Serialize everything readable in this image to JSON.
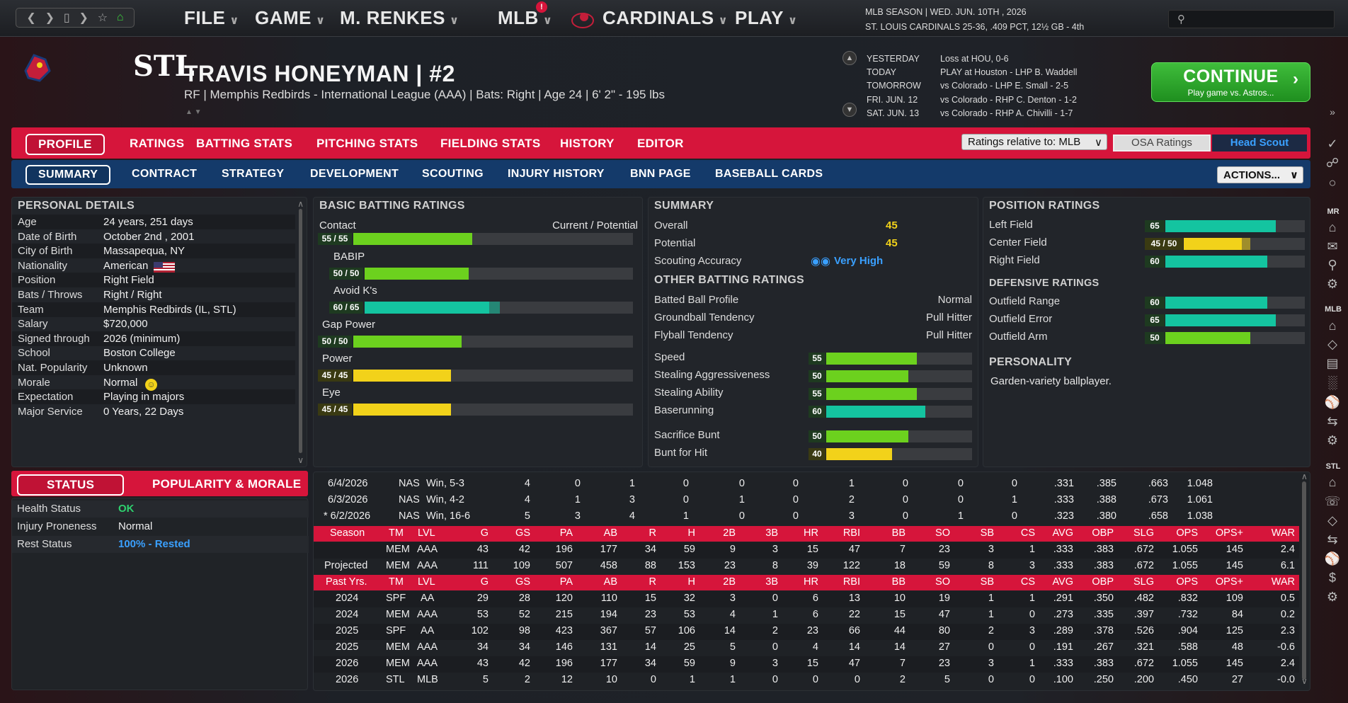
{
  "topbar": {
    "menus": [
      "FILE",
      "GAME",
      "M. RENKES",
      "MLB",
      "CARDINALS",
      "PLAY"
    ],
    "alert_badge": "!",
    "season_line1": "MLB SEASON  |  WED. JUN. 10TH , 2026",
    "season_line2": "ST. LOUIS CARDINALS  25-36, .409 PCT, 12½ GB - 4th",
    "search_placeholder": ""
  },
  "player": {
    "name": "TRAVIS HONEYMAN  |  #2",
    "subtitle": "RF | Memphis Redbirds - International League (AAA)  |  Bats: Right  |  Age 24  |  6' 2\" - 195 lbs",
    "team_logo": "STL"
  },
  "schedule": {
    "labels": [
      "YESTERDAY",
      "TODAY",
      "TOMORROW",
      "FRI. JUN. 12",
      "SAT. JUN. 13"
    ],
    "values": [
      "Loss at HOU, 0-6",
      "PLAY at Houston - LHP B. Waddell",
      "vs Colorado - LHP E. Small - 2-5",
      "vs Colorado - RHP C. Denton - 1-2",
      "vs Colorado - RHP A. Chivilli - 1-7"
    ]
  },
  "continue": {
    "label": "CONTINUE",
    "sub": "Play game vs. Astros..."
  },
  "tabs1": [
    "PROFILE",
    "RATINGS",
    "BATTING STATS",
    "PITCHING STATS",
    "FIELDING STATS",
    "HISTORY",
    "EDITOR"
  ],
  "tabs2": [
    "SUMMARY",
    "CONTRACT",
    "STRATEGY",
    "DEVELOPMENT",
    "SCOUTING",
    "INJURY HISTORY",
    "BNN PAGE",
    "BASEBALL CARDS"
  ],
  "ratings_select": "Ratings relative to: MLB",
  "osa": "OSA Ratings",
  "head_scout": "Head Scout",
  "actions": "ACTIONS...",
  "personal": {
    "title": "PERSONAL DETAILS",
    "rows": [
      [
        "Age",
        "24 years, 251 days"
      ],
      [
        "Date of Birth",
        "October 2nd , 2001"
      ],
      [
        "City of Birth",
        "Massapequa, NY"
      ],
      [
        "Nationality",
        "American"
      ],
      [
        "Position",
        "Right Field"
      ],
      [
        "Bats / Throws",
        "Right / Right"
      ],
      [
        "Team",
        "Memphis Redbirds (IL, STL)"
      ],
      [
        "Salary",
        "$720,000"
      ],
      [
        "Signed through",
        "2026 (minimum)"
      ],
      [
        "School",
        "Boston College"
      ],
      [
        "Nat. Popularity",
        "Unknown"
      ],
      [
        "Morale",
        "Normal"
      ],
      [
        "Expectation",
        "Playing in majors"
      ],
      [
        "Major Service",
        "0 Years, 22 Days"
      ]
    ]
  },
  "batting": {
    "title": "BASIC BATTING RATINGS",
    "header_right": "Current / Potential",
    "items": [
      {
        "label": "Contact",
        "text": "55 / 55",
        "cur": 55,
        "pot": 55,
        "color": "g",
        "indent": false
      },
      {
        "label": "BABIP",
        "text": "50 / 50",
        "cur": 50,
        "pot": 50,
        "color": "g",
        "indent": true
      },
      {
        "label": "Avoid K's",
        "text": "60 / 65",
        "cur": 60,
        "pot": 65,
        "color": "c",
        "indent": true
      },
      {
        "label": "Gap Power",
        "text": "50 / 50",
        "cur": 50,
        "pot": 50,
        "color": "g",
        "indent": false
      },
      {
        "label": "Power",
        "text": "45 / 45",
        "cur": 45,
        "pot": 45,
        "color": "y",
        "indent": false
      },
      {
        "label": "Eye",
        "text": "45 / 45",
        "cur": 45,
        "pot": 45,
        "color": "y",
        "indent": false
      }
    ]
  },
  "summary": {
    "title": "SUMMARY",
    "overall_label": "Overall",
    "overall": "45",
    "potential_label": "Potential",
    "potential": "45",
    "scout_label": "Scouting Accuracy",
    "scout": "Very High",
    "other_title": "OTHER BATTING RATINGS",
    "profile": [
      [
        "Batted Ball Profile",
        "Normal"
      ],
      [
        "Groundball Tendency",
        "Pull Hitter"
      ],
      [
        "Flyball Tendency",
        "Pull Hitter"
      ]
    ],
    "bars": [
      {
        "label": "Speed",
        "v": 55,
        "color": "g"
      },
      {
        "label": "Stealing Aggressiveness",
        "v": 50,
        "color": "g"
      },
      {
        "label": "Stealing Ability",
        "v": 55,
        "color": "g"
      },
      {
        "label": "Baserunning",
        "v": 60,
        "color": "c"
      },
      {
        "label": "Sacrifice Bunt",
        "v": 50,
        "color": "g"
      },
      {
        "label": "Bunt for Hit",
        "v": 40,
        "color": "y"
      }
    ]
  },
  "position": {
    "title": "POSITION RATINGS",
    "items": [
      {
        "label": "Left Field",
        "text": "65",
        "cur": 65,
        "pot": 65,
        "color": "c"
      },
      {
        "label": "Center Field",
        "text": "45 / 50",
        "cur": 45,
        "pot": 50,
        "color": "y"
      },
      {
        "label": "Right Field",
        "text": "60",
        "cur": 60,
        "pot": 60,
        "color": "c"
      }
    ],
    "def_title": "DEFENSIVE RATINGS",
    "def": [
      {
        "label": "Outfield Range",
        "text": "60",
        "cur": 60,
        "color": "c"
      },
      {
        "label": "Outfield Error",
        "text": "65",
        "cur": 65,
        "color": "c"
      },
      {
        "label": "Outfield Arm",
        "text": "50",
        "cur": 50,
        "color": "g"
      }
    ],
    "personality_title": "PERSONALITY",
    "personality": "Garden-variety ballplayer."
  },
  "status": {
    "tab1": "STATUS",
    "tab2": "POPULARITY & MORALE",
    "rows": [
      [
        "Health Status",
        "OK"
      ],
      [
        "Injury Proneness",
        "Normal"
      ],
      [
        "Rest Status",
        "100% - Rested"
      ]
    ]
  },
  "stats": {
    "cols": [
      "G",
      "GS",
      "PA",
      "AB",
      "R",
      "H",
      "2B",
      "3B",
      "HR",
      "RBI",
      "BB",
      "SO",
      "SB",
      "CS",
      "AVG",
      "OBP",
      "SLG",
      "OPS",
      "OPS+",
      "WAR"
    ],
    "games": [
      [
        "6/4/2026",
        "NAS",
        "Win, 5-3",
        "4",
        "0",
        "1",
        "0",
        "0",
        "0",
        "1",
        "0",
        "0",
        "0",
        ".331",
        ".385",
        ".663",
        "1.048"
      ],
      [
        "6/3/2026",
        "NAS",
        "Win, 4-2",
        "4",
        "1",
        "3",
        "0",
        "1",
        "0",
        "2",
        "0",
        "0",
        "1",
        ".333",
        ".388",
        ".673",
        "1.061"
      ],
      [
        "* 6/2/2026",
        "NAS",
        "Win, 16-6",
        "5",
        "3",
        "4",
        "1",
        "0",
        "0",
        "3",
        "0",
        "1",
        "0",
        ".323",
        ".380",
        ".658",
        "1.038"
      ]
    ],
    "season_header": [
      "Season",
      "TM",
      "LVL"
    ],
    "season": [
      [
        "",
        "MEM",
        "AAA",
        "43",
        "42",
        "196",
        "177",
        "34",
        "59",
        "9",
        "3",
        "15",
        "47",
        "7",
        "23",
        "3",
        "1",
        ".333",
        ".383",
        ".672",
        "1.055",
        "145",
        "2.4"
      ],
      [
        "Projected",
        "MEM",
        "AAA",
        "111",
        "109",
        "507",
        "458",
        "88",
        "153",
        "23",
        "8",
        "39",
        "122",
        "18",
        "59",
        "8",
        "3",
        ".333",
        ".383",
        ".672",
        "1.055",
        "145",
        "6.1"
      ]
    ],
    "past_header": [
      "Past Yrs.",
      "TM",
      "LVL"
    ],
    "past": [
      [
        "2024",
        "SPF",
        "AA",
        "29",
        "28",
        "120",
        "110",
        "15",
        "32",
        "3",
        "0",
        "6",
        "13",
        "10",
        "19",
        "1",
        "1",
        ".291",
        ".350",
        ".482",
        ".832",
        "109",
        "0.5"
      ],
      [
        "2024",
        "MEM",
        "AAA",
        "53",
        "52",
        "215",
        "194",
        "23",
        "53",
        "4",
        "1",
        "6",
        "22",
        "15",
        "47",
        "1",
        "0",
        ".273",
        ".335",
        ".397",
        ".732",
        "84",
        "0.2"
      ],
      [
        "2025",
        "SPF",
        "AA",
        "102",
        "98",
        "423",
        "367",
        "57",
        "106",
        "14",
        "2",
        "23",
        "66",
        "44",
        "80",
        "2",
        "3",
        ".289",
        ".378",
        ".526",
        ".904",
        "125",
        "2.3"
      ],
      [
        "2025",
        "MEM",
        "AAA",
        "34",
        "34",
        "146",
        "131",
        "14",
        "25",
        "5",
        "0",
        "4",
        "14",
        "14",
        "27",
        "0",
        "0",
        ".191",
        ".267",
        ".321",
        ".588",
        "48",
        "-0.6"
      ],
      [
        "2026",
        "MEM",
        "AAA",
        "43",
        "42",
        "196",
        "177",
        "34",
        "59",
        "9",
        "3",
        "15",
        "47",
        "7",
        "23",
        "3",
        "1",
        ".333",
        ".383",
        ".672",
        "1.055",
        "145",
        "2.4"
      ],
      [
        "2026",
        "STL",
        "MLB",
        "5",
        "2",
        "12",
        "10",
        "0",
        "1",
        "1",
        "0",
        "0",
        "0",
        "2",
        "5",
        "0",
        "0",
        ".100",
        ".250",
        ".200",
        ".450",
        "27",
        "-0.0"
      ]
    ]
  },
  "sidebar": {
    "labels": [
      "MR",
      "MLB",
      "STL"
    ]
  },
  "colors": {
    "red": "#d6153b",
    "blue": "#143a6a",
    "green": "#6cd11e",
    "teal": "#14c4a0",
    "yellow": "#f2d21a"
  }
}
